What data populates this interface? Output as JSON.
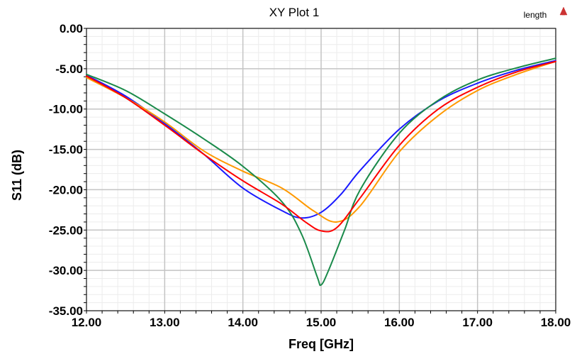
{
  "chart_data": {
    "type": "line",
    "title": "XY Plot 1",
    "xlabel": "Freq [GHz]",
    "ylabel": "S11 (dB)",
    "xlim": [
      12,
      18
    ],
    "ylim": [
      -35,
      0
    ],
    "x_ticks": [
      "12.00",
      "13.00",
      "14.00",
      "15.00",
      "16.00",
      "17.00",
      "18.00"
    ],
    "y_ticks": [
      "0.00",
      "-5.00",
      "-10.00",
      "-15.00",
      "-20.00",
      "-25.00",
      "-30.00",
      "-35.00"
    ],
    "grid": true,
    "legend_label": "length",
    "legend_placement": "top-right",
    "series": [
      {
        "color": "#1a1aff",
        "points": [
          [
            12.0,
            -5.8
          ],
          [
            12.5,
            -8.4
          ],
          [
            13.0,
            -11.8
          ],
          [
            13.5,
            -15.6
          ],
          [
            14.0,
            -19.8
          ],
          [
            14.5,
            -22.6
          ],
          [
            14.75,
            -23.5
          ],
          [
            15.0,
            -22.8
          ],
          [
            15.25,
            -20.6
          ],
          [
            15.5,
            -17.6
          ],
          [
            16.0,
            -12.5
          ],
          [
            16.5,
            -9.0
          ],
          [
            17.0,
            -6.8
          ],
          [
            17.5,
            -5.2
          ],
          [
            18.0,
            -4.0
          ]
        ]
      },
      {
        "color": "#ff9900",
        "points": [
          [
            12.0,
            -6.1
          ],
          [
            12.5,
            -8.6
          ],
          [
            13.0,
            -11.6
          ],
          [
            13.5,
            -15.2
          ],
          [
            14.0,
            -17.7
          ],
          [
            14.5,
            -19.8
          ],
          [
            14.9,
            -22.6
          ],
          [
            15.2,
            -24.0
          ],
          [
            15.5,
            -22.0
          ],
          [
            16.0,
            -15.3
          ],
          [
            16.5,
            -10.8
          ],
          [
            17.0,
            -7.7
          ],
          [
            17.5,
            -5.7
          ],
          [
            18.0,
            -4.1
          ]
        ]
      },
      {
        "color": "#1a8a4a",
        "points": [
          [
            12.0,
            -5.7
          ],
          [
            12.5,
            -7.7
          ],
          [
            13.0,
            -10.6
          ],
          [
            13.5,
            -13.7
          ],
          [
            14.0,
            -17.1
          ],
          [
            14.5,
            -21.5
          ],
          [
            14.75,
            -25.5
          ],
          [
            14.95,
            -30.8
          ],
          [
            15.0,
            -31.8
          ],
          [
            15.1,
            -29.9
          ],
          [
            15.3,
            -25.0
          ],
          [
            15.5,
            -20.0
          ],
          [
            16.0,
            -13.0
          ],
          [
            16.5,
            -8.9
          ],
          [
            17.0,
            -6.4
          ],
          [
            17.5,
            -4.9
          ],
          [
            18.0,
            -3.7
          ]
        ]
      },
      {
        "color": "#ff0000",
        "points": [
          [
            12.0,
            -5.9
          ],
          [
            12.5,
            -8.6
          ],
          [
            13.0,
            -12.0
          ],
          [
            13.5,
            -15.6
          ],
          [
            14.0,
            -18.9
          ],
          [
            14.5,
            -21.8
          ],
          [
            14.8,
            -24.0
          ],
          [
            15.0,
            -25.1
          ],
          [
            15.2,
            -24.7
          ],
          [
            15.5,
            -21.0
          ],
          [
            16.0,
            -14.5
          ],
          [
            16.5,
            -10.0
          ],
          [
            17.0,
            -7.3
          ],
          [
            17.5,
            -5.4
          ],
          [
            18.0,
            -4.1
          ]
        ]
      }
    ]
  }
}
